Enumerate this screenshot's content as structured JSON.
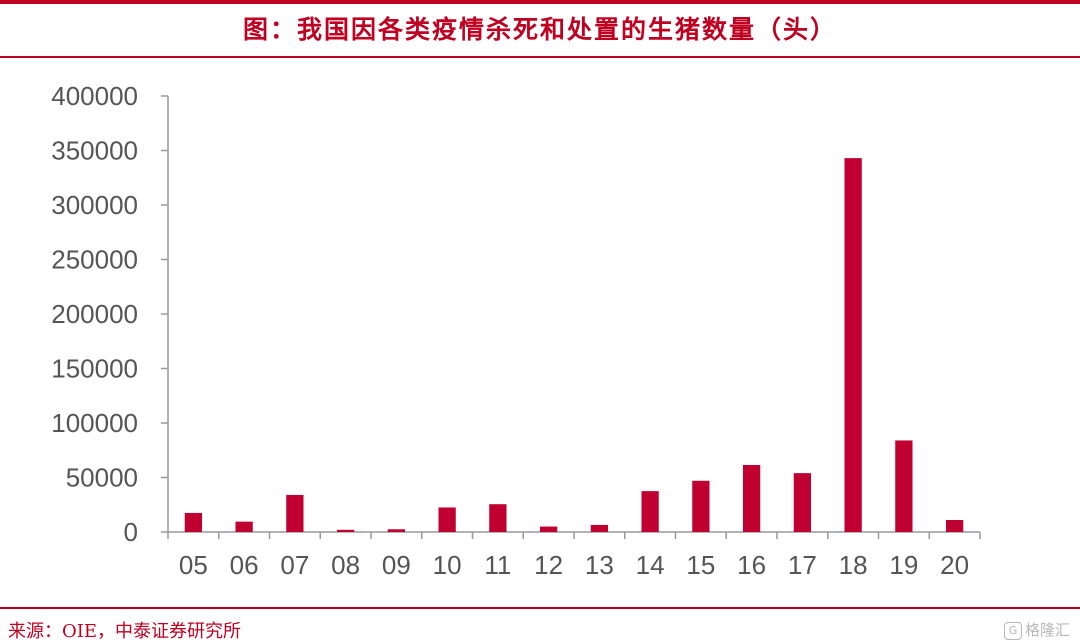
{
  "header": {
    "title": "图：我国因各类疫情杀死和处置的生猪数量（头）"
  },
  "footer": {
    "source": "来源：OIE，中泰证券研究所",
    "watermark_icon": "G",
    "watermark_text": "格隆汇"
  },
  "colors": {
    "accent": "#c00020",
    "bar": "#c00030",
    "axis": "#999999",
    "tick_text": "#555555"
  },
  "chart_data": {
    "type": "bar",
    "title": "图：我国因各类疫情杀死和处置的生猪数量（头）",
    "xlabel": "",
    "ylabel": "",
    "categories": [
      "05",
      "06",
      "07",
      "08",
      "09",
      "10",
      "11",
      "12",
      "13",
      "14",
      "15",
      "16",
      "17",
      "18",
      "19",
      "20"
    ],
    "values": [
      17500,
      9500,
      34000,
      2000,
      2500,
      22500,
      25500,
      5000,
      6500,
      37500,
      47000,
      61500,
      54000,
      343000,
      84000,
      11000
    ],
    "ylim": [
      0,
      400000
    ],
    "yticks": [
      0,
      50000,
      100000,
      150000,
      200000,
      250000,
      300000,
      350000,
      400000
    ],
    "ytick_labels": [
      "0",
      "50000",
      "100000",
      "150000",
      "200000",
      "250000",
      "300000",
      "350000",
      "400000"
    ],
    "grid": false,
    "legend": "none"
  }
}
